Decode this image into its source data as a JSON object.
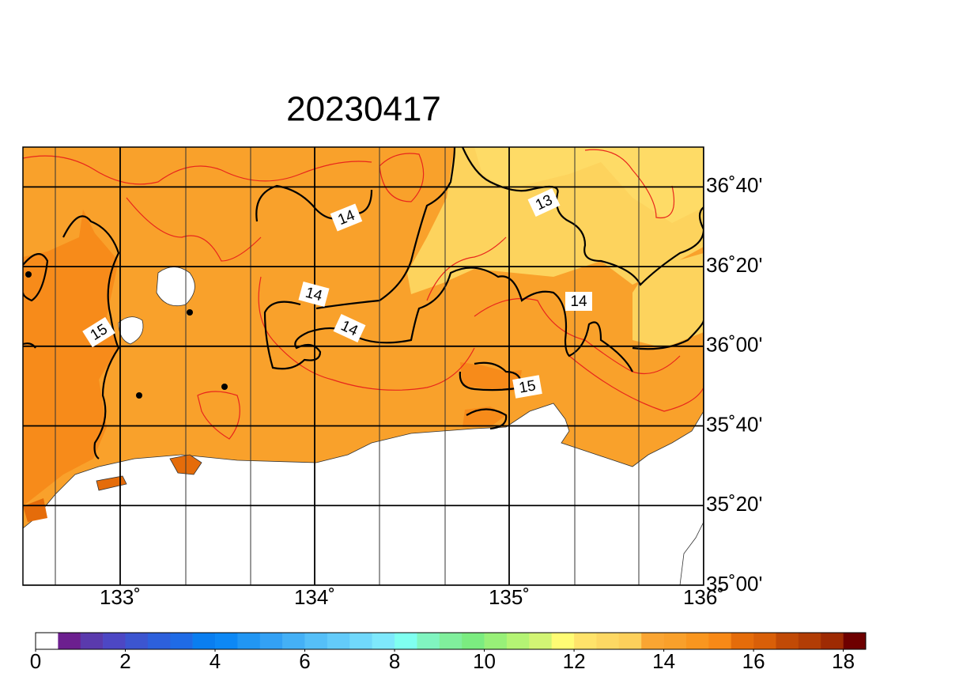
{
  "title": "20230417",
  "map": {
    "xlim": [
      132.5,
      136
    ],
    "ylim": [
      35,
      36.8333
    ],
    "xticks": [
      {
        "value": 133,
        "label": "133˚"
      },
      {
        "value": 134,
        "label": "134˚"
      },
      {
        "value": 135,
        "label": "135˚"
      },
      {
        "value": 136,
        "label": "136˚"
      }
    ],
    "yticks": [
      {
        "value": 36.6667,
        "label": "36˚40'"
      },
      {
        "value": 36.3333,
        "label": "36˚20'"
      },
      {
        "value": 36,
        "label": "36˚00'"
      },
      {
        "value": 35.6667,
        "label": "35˚40'"
      },
      {
        "value": 35.3333,
        "label": "35˚20'"
      },
      {
        "value": 35,
        "label": "35˚00'"
      }
    ],
    "contour_labels": [
      "14",
      "13",
      "14",
      "14",
      "14",
      "15",
      "15"
    ]
  },
  "colorbar": {
    "range": [
      0,
      18.5
    ],
    "ticks": [
      0,
      2,
      4,
      6,
      8,
      10,
      12,
      14,
      16,
      18
    ],
    "colors": [
      "#ffffff",
      "#6c1f8f",
      "#5a3aad",
      "#4d47c4",
      "#3c55d0",
      "#2d60dc",
      "#1f6be6",
      "#0a7ef0",
      "#0d88f5",
      "#2196f3",
      "#33a1f5",
      "#44b0f6",
      "#55bff8",
      "#63cbfa",
      "#70d8fb",
      "#7ee8fc",
      "#7ffff0",
      "#80f5c0",
      "#80ef9c",
      "#7bec80",
      "#98f078",
      "#b4f474",
      "#d2f574",
      "#fffc74",
      "#ffe36a",
      "#fdd863",
      "#fdd05b",
      "#faa532",
      "#f9a02b",
      "#f9961f",
      "#f88917",
      "#e56c0a",
      "#d95f08",
      "#c14a06",
      "#b23d05",
      "#9e2a03",
      "#6e0000"
    ]
  }
}
